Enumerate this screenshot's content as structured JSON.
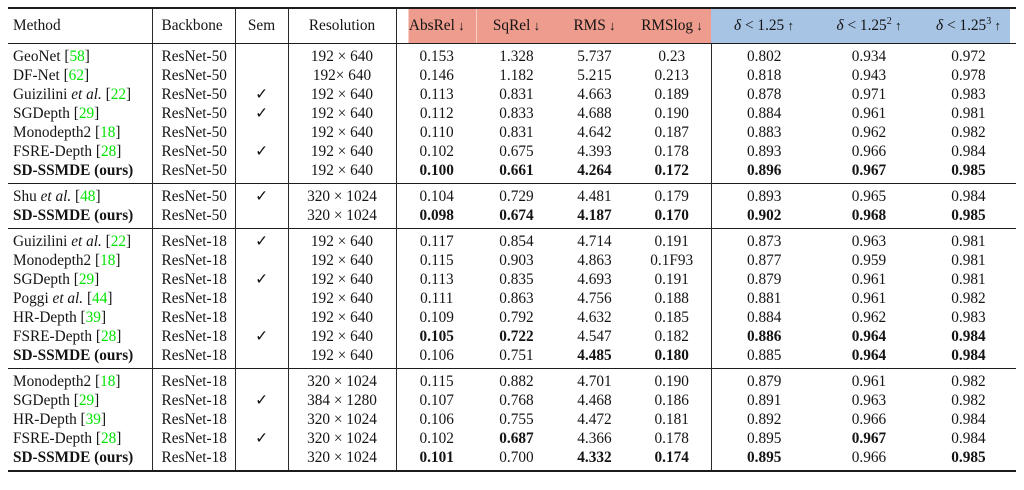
{
  "table": {
    "colors": {
      "error_header_bg": "#ee9c8d",
      "accuracy_header_bg": "#a7c4e4",
      "citation_green": "#00e400"
    },
    "sem_check_glyph": "✓",
    "columns": [
      {
        "key": "method",
        "label": "Method"
      },
      {
        "key": "backbone",
        "label": "Backbone"
      },
      {
        "key": "sem",
        "label": "Sem"
      },
      {
        "key": "resolution",
        "label": "Resolution"
      },
      {
        "key": "absrel",
        "label": "AbsRel",
        "arrow": "↓",
        "group": "error"
      },
      {
        "key": "sqrel",
        "label": "SqRel",
        "arrow": "↓",
        "group": "error"
      },
      {
        "key": "rms",
        "label": "RMS",
        "arrow": "↓",
        "group": "error"
      },
      {
        "key": "rmslog",
        "label": "RMSlog",
        "arrow": "↓",
        "group": "error"
      },
      {
        "key": "d1",
        "label": "δ < 1.25",
        "sup": "",
        "arrow": "↑",
        "group": "accuracy",
        "math": true
      },
      {
        "key": "d2",
        "label": "δ < 1.25",
        "sup": "2",
        "arrow": "↑",
        "group": "accuracy",
        "math": true
      },
      {
        "key": "d3",
        "label": "δ < 1.25",
        "sup": "3",
        "arrow": "↑",
        "group": "accuracy",
        "math": true
      }
    ],
    "sections": [
      {
        "rows": [
          {
            "method": "GeoNet",
            "cite": "58",
            "backbone": "ResNet-50",
            "sem": false,
            "resolution": "192 × 640",
            "values": [
              "0.153",
              "1.328",
              "5.737",
              "0.23",
              "0.802",
              "0.934",
              "0.972"
            ],
            "bold": []
          },
          {
            "method": "DF-Net",
            "cite": "62",
            "backbone": "ResNet-50",
            "sem": false,
            "resolution": "192× 640",
            "values": [
              "0.146",
              "1.182",
              "5.215",
              "0.213",
              "0.818",
              "0.943",
              "0.978"
            ],
            "bold": []
          },
          {
            "method": "Guizilini et al.",
            "cite": "22",
            "backbone": "ResNet-50",
            "sem": true,
            "resolution": "192 × 640",
            "values": [
              "0.113",
              "0.831",
              "4.663",
              "0.189",
              "0.878",
              "0.971",
              "0.983"
            ],
            "bold": []
          },
          {
            "method": "SGDepth",
            "cite": "29",
            "backbone": "ResNet-50",
            "sem": true,
            "resolution": "192 × 640",
            "values": [
              "0.112",
              "0.833",
              "4.688",
              "0.190",
              "0.884",
              "0.961",
              "0.981"
            ],
            "bold": []
          },
          {
            "method": "Monodepth2",
            "cite": "18",
            "backbone": "ResNet-50",
            "sem": false,
            "resolution": "192 × 640",
            "values": [
              "0.110",
              "0.831",
              "4.642",
              "0.187",
              "0.883",
              "0.962",
              "0.982"
            ],
            "bold": []
          },
          {
            "method": "FSRE-Depth",
            "cite": "28",
            "backbone": "ResNet-50",
            "sem": true,
            "resolution": "192 × 640",
            "values": [
              "0.102",
              "0.675",
              "4.393",
              "0.178",
              "0.893",
              "0.966",
              "0.984"
            ],
            "bold": []
          },
          {
            "method": "SD-SSMDE (ours)",
            "cite": "",
            "backbone": "ResNet-50",
            "sem": false,
            "resolution": "192 × 640",
            "values": [
              "0.100",
              "0.661",
              "4.264",
              "0.172",
              "0.896",
              "0.967",
              "0.985"
            ],
            "bold": [
              0,
              1,
              2,
              3,
              4,
              5,
              6
            ],
            "method_bold": true
          }
        ]
      },
      {
        "rows": [
          {
            "method": "Shu et al.",
            "cite": "48",
            "backbone": "ResNet-50",
            "sem": true,
            "resolution": "320 × 1024",
            "values": [
              "0.104",
              "0.729",
              "4.481",
              "0.179",
              "0.893",
              "0.965",
              "0.984"
            ],
            "bold": []
          },
          {
            "method": "SD-SSMDE (ours)",
            "cite": "",
            "backbone": "ResNet-50",
            "sem": false,
            "resolution": "320 × 1024",
            "values": [
              "0.098",
              "0.674",
              "4.187",
              "0.170",
              "0.902",
              "0.968",
              "0.985"
            ],
            "bold": [
              0,
              1,
              2,
              3,
              4,
              5,
              6
            ],
            "method_bold": true
          }
        ]
      },
      {
        "rows": [
          {
            "method": "Guizilini et al.",
            "cite": "22",
            "backbone": "ResNet-18",
            "sem": true,
            "resolution": "192 × 640",
            "values": [
              "0.117",
              "0.854",
              "4.714",
              "0.191",
              "0.873",
              "0.963",
              "0.981"
            ],
            "bold": []
          },
          {
            "method": "Monodepth2",
            "cite": "18",
            "backbone": "ResNet-18",
            "sem": false,
            "resolution": "192 × 640",
            "values": [
              "0.115",
              "0.903",
              "4.863",
              "0.1F93",
              "0.877",
              "0.959",
              "0.981"
            ],
            "bold": []
          },
          {
            "method": "SGDepth",
            "cite": "29",
            "backbone": "ResNet-18",
            "sem": true,
            "resolution": "192 × 640",
            "values": [
              "0.113",
              "0.835",
              "4.693",
              "0.191",
              "0.879",
              "0.961",
              "0.981"
            ],
            "bold": []
          },
          {
            "method": "Poggi et al.",
            "cite": "44",
            "backbone": "ResNet-18",
            "sem": false,
            "resolution": "192 × 640",
            "values": [
              "0.111",
              "0.863",
              "4.756",
              "0.188",
              "0.881",
              "0.961",
              "0.982"
            ],
            "bold": []
          },
          {
            "method": "HR-Depth",
            "cite": "39",
            "backbone": "ResNet-18",
            "sem": false,
            "resolution": "192 × 640",
            "values": [
              "0.109",
              "0.792",
              "4.632",
              "0.185",
              "0.884",
              "0.962",
              "0.983"
            ],
            "bold": []
          },
          {
            "method": "FSRE-Depth",
            "cite": "28",
            "backbone": "ResNet-18",
            "sem": true,
            "resolution": "192 × 640",
            "values": [
              "0.105",
              "0.722",
              "4.547",
              "0.182",
              "0.886",
              "0.964",
              "0.984"
            ],
            "bold": [
              0,
              1,
              4,
              5,
              6
            ]
          },
          {
            "method": "SD-SSMDE (ours)",
            "cite": "",
            "backbone": "ResNet-18",
            "sem": false,
            "resolution": "192 × 640",
            "values": [
              "0.106",
              "0.751",
              "4.485",
              "0.180",
              "0.885",
              "0.964",
              "0.984"
            ],
            "bold": [
              2,
              3,
              5,
              6
            ],
            "method_bold": true
          }
        ]
      },
      {
        "rows": [
          {
            "method": "Monodepth2",
            "cite": "18",
            "backbone": "ResNet-18",
            "sem": false,
            "resolution": "320 × 1024",
            "values": [
              "0.115",
              "0.882",
              "4.701",
              "0.190",
              "0.879",
              "0.961",
              "0.982"
            ],
            "bold": []
          },
          {
            "method": "SGDepth",
            "cite": "29",
            "backbone": "ResNet-18",
            "sem": true,
            "resolution": "384 × 1280",
            "values": [
              "0.107",
              "0.768",
              "4.468",
              "0.186",
              "0.891",
              "0.963",
              "0.982"
            ],
            "bold": []
          },
          {
            "method": "HR-Depth",
            "cite": "39",
            "backbone": "ResNet-18",
            "sem": false,
            "resolution": "320 × 1024",
            "values": [
              "0.106",
              "0.755",
              "4.472",
              "0.181",
              "0.892",
              "0.966",
              "0.984"
            ],
            "bold": []
          },
          {
            "method": "FSRE-Depth",
            "cite": "28",
            "backbone": "ResNet-18",
            "sem": true,
            "resolution": "320 × 1024",
            "values": [
              "0.102",
              "0.687",
              "4.366",
              "0.178",
              "0.895",
              "0.967",
              "0.984"
            ],
            "bold": [
              1,
              5
            ]
          },
          {
            "method": "SD-SSMDE (ours)",
            "cite": "",
            "backbone": "ResNet-18",
            "sem": false,
            "resolution": "320 × 1024",
            "values": [
              "0.101",
              "0.700",
              "4.332",
              "0.174",
              "0.895",
              "0.966",
              "0.985"
            ],
            "bold": [
              0,
              2,
              3,
              4,
              6
            ],
            "method_bold": true
          }
        ]
      }
    ]
  }
}
